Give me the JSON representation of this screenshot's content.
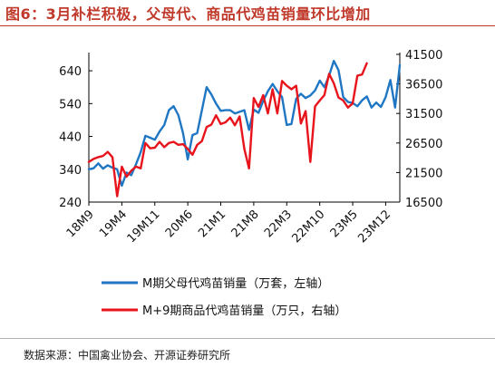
{
  "figure_title": "图6：3月补栏积极，父母代、商品代鸡苗销量环比增加",
  "source": "数据来源：中国禽业协会、开源证券研究所",
  "colors": {
    "title": "#c0392b",
    "series_left": "#1f77c4",
    "series_right": "#e8141c",
    "axis": "#000000"
  },
  "chart_data": {
    "type": "line",
    "title": "",
    "xlabel": "",
    "ylabel": "",
    "grid": false,
    "legend_position": "bottom",
    "x_tick_labels": [
      "18M9",
      "19M4",
      "19M11",
      "20M6",
      "21M1",
      "21M8",
      "22M3",
      "22M10",
      "23M5",
      "23M12"
    ],
    "x_tick_indices": [
      0,
      7,
      14,
      21,
      28,
      35,
      42,
      49,
      56,
      63
    ],
    "y_left": {
      "ticks": [
        240,
        340,
        440,
        540,
        640
      ],
      "range": [
        240,
        690
      ]
    },
    "y_right": {
      "ticks": [
        16500,
        21500,
        26500,
        31500,
        36500,
        41500
      ],
      "range": [
        16500,
        41500
      ]
    },
    "series": [
      {
        "name": "M期父母代鸡苗销量（万套，左轴）",
        "axis": "left",
        "color": "#1f77c4",
        "x": [
          0,
          1,
          2,
          3,
          4,
          5,
          6,
          7,
          8,
          9,
          10,
          11,
          12,
          13,
          14,
          15,
          16,
          17,
          18,
          19,
          20,
          21,
          22,
          23,
          24,
          25,
          26,
          27,
          28,
          29,
          30,
          31,
          32,
          33,
          34,
          35,
          36,
          37,
          38,
          39,
          40,
          41,
          42,
          43,
          44,
          45,
          46,
          47,
          48,
          49,
          50,
          51,
          52,
          53,
          54,
          55,
          56,
          57,
          58,
          59,
          60,
          61,
          62,
          63,
          64,
          65,
          66
        ],
        "values": [
          340,
          343,
          358,
          342,
          352,
          345,
          340,
          290,
          330,
          322,
          355,
          392,
          442,
          436,
          430,
          455,
          475,
          520,
          532,
          505,
          450,
          370,
          444,
          450,
          520,
          590,
          568,
          540,
          518,
          520,
          520,
          510,
          515,
          520,
          460,
          522,
          512,
          548,
          578,
          600,
          578,
          560,
          475,
          478,
          555,
          570,
          557,
          565,
          580,
          610,
          590,
          625,
          670,
          642,
          560,
          545,
          542,
          532,
          550,
          562,
          528,
          543,
          530,
          560,
          612,
          528,
          658
        ]
      },
      {
        "name": "M+9期商品代鸡苗销量（万只，右轴）",
        "axis": "right",
        "color": "#e8141c",
        "x": [
          0,
          1,
          2,
          3,
          4,
          5,
          6,
          7,
          8,
          9,
          10,
          11,
          12,
          13,
          14,
          15,
          16,
          17,
          18,
          19,
          20,
          21,
          22,
          23,
          24,
          25,
          26,
          27,
          28,
          29,
          30,
          31,
          32,
          33,
          34,
          35,
          36,
          37,
          38,
          39,
          40,
          41,
          42,
          43,
          44,
          45,
          46,
          47,
          48,
          49,
          50,
          51,
          52,
          53,
          54,
          55,
          56,
          57,
          58,
          59
        ],
        "values": [
          23300,
          23800,
          24100,
          24300,
          25000,
          24100,
          17500,
          22500,
          20800,
          21800,
          22500,
          22200,
          26500,
          25600,
          25700,
          26700,
          25800,
          26500,
          26700,
          26200,
          26300,
          25500,
          24500,
          26200,
          26800,
          29200,
          29600,
          31200,
          29700,
          30000,
          30800,
          29500,
          31000,
          25500,
          22200,
          34100,
          32600,
          34600,
          31500,
          35600,
          31500,
          37000,
          36200,
          35600,
          36200,
          29800,
          31900,
          23300,
          32700,
          33700,
          34600,
          38200,
          36600,
          34200,
          33700,
          32500,
          33200,
          37900,
          38100,
          40000
        ]
      }
    ]
  }
}
